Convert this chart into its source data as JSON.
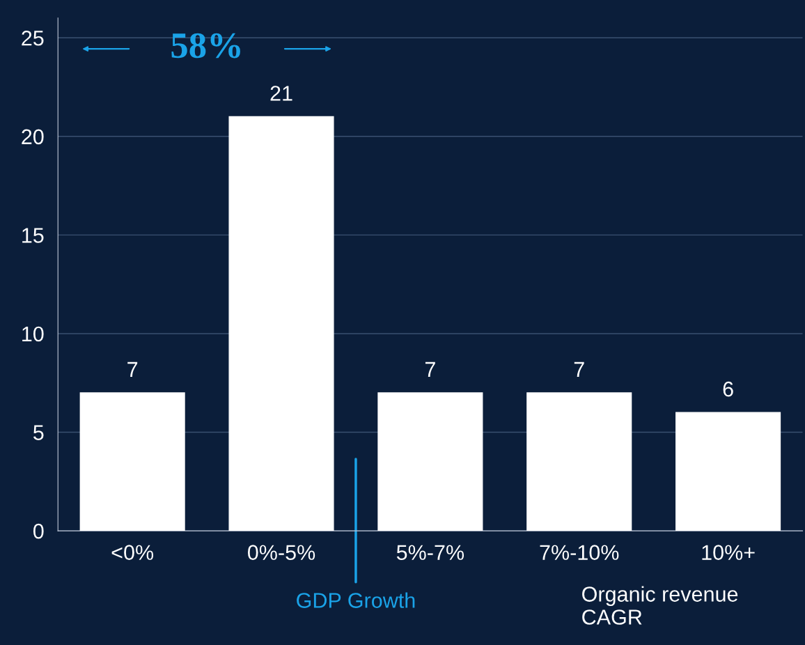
{
  "chart_data": {
    "type": "bar",
    "xlabel": "Organic revenue CAGR",
    "categories": [
      "<0%",
      "0%-5%",
      "5%-7%",
      "7%-10%",
      "10%+"
    ],
    "values": [
      7,
      21,
      7,
      7,
      6
    ],
    "data_labels": true,
    "color": "#ffffff",
    "ylim": [
      0,
      26
    ],
    "yticks": [
      0,
      5,
      10,
      15,
      20,
      25
    ],
    "grid": "y",
    "annotations": [
      "58%",
      "GDP Growth"
    ]
  }
}
